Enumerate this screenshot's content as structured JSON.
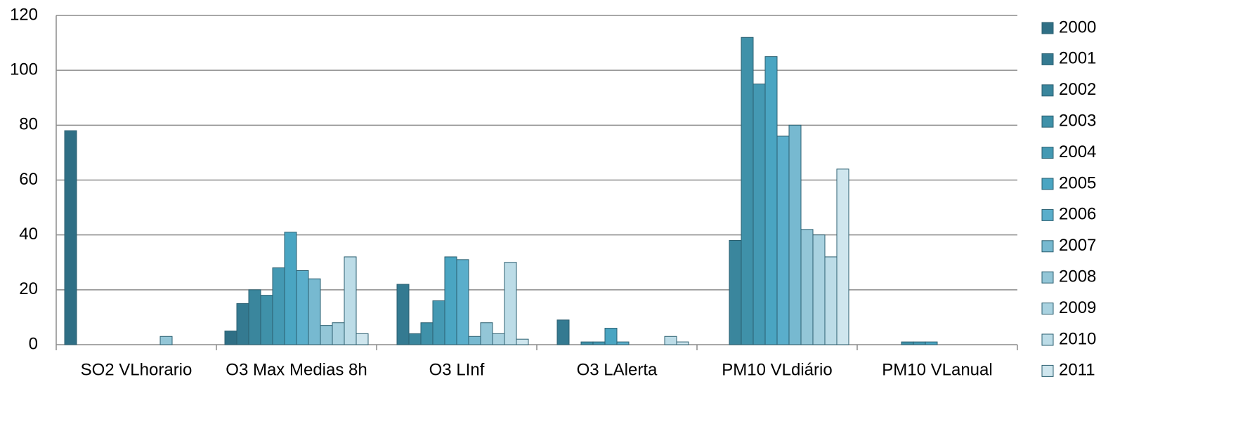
{
  "chart_data": {
    "type": "bar",
    "categories": [
      "SO2 VLhorario",
      "O3 Max Medias 8h",
      "O3 LInf",
      "O3 LAlerta",
      "PM10 VLdiário",
      "PM10 VLanual"
    ],
    "series": [
      {
        "name": "2000",
        "color": "#2f6f85",
        "values": [
          78,
          5,
          0,
          0,
          0,
          0
        ]
      },
      {
        "name": "2001",
        "color": "#347a91",
        "values": [
          0,
          15,
          22,
          9,
          0,
          0
        ]
      },
      {
        "name": "2002",
        "color": "#3a869d",
        "values": [
          0,
          20,
          4,
          0,
          38,
          0
        ]
      },
      {
        "name": "2003",
        "color": "#3f91a9",
        "values": [
          0,
          18,
          8,
          1,
          112,
          1
        ]
      },
      {
        "name": "2004",
        "color": "#4499b3",
        "values": [
          0,
          28,
          16,
          1,
          95,
          1
        ]
      },
      {
        "name": "2005",
        "color": "#4aa5c2",
        "values": [
          0,
          41,
          32,
          6,
          105,
          1
        ]
      },
      {
        "name": "2006",
        "color": "#5aaecb",
        "values": [
          0,
          27,
          31,
          1,
          76,
          0
        ]
      },
      {
        "name": "2007",
        "color": "#77b9d0",
        "values": [
          0,
          24,
          3,
          0,
          80,
          0
        ]
      },
      {
        "name": "2008",
        "color": "#93c6d7",
        "values": [
          3,
          7,
          8,
          0,
          42,
          0
        ]
      },
      {
        "name": "2009",
        "color": "#a9d2e0",
        "values": [
          0,
          8,
          4,
          0,
          40,
          0
        ]
      },
      {
        "name": "2010",
        "color": "#bcdce7",
        "values": [
          0,
          32,
          30,
          3,
          32,
          0
        ]
      },
      {
        "name": "2011",
        "color": "#cfe6ee",
        "values": [
          0,
          4,
          2,
          1,
          64,
          0
        ]
      }
    ],
    "ylim": [
      0,
      120
    ],
    "yticks": [
      0,
      20,
      40,
      60,
      80,
      100,
      120
    ],
    "grid": true,
    "legend": "right"
  }
}
